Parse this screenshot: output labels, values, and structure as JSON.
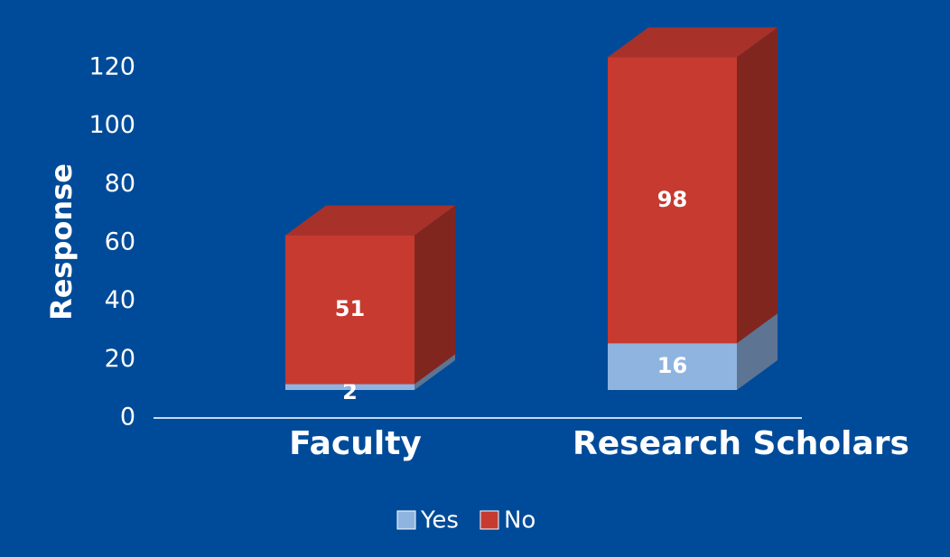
{
  "chart_data": {
    "type": "stacked_bar_3d",
    "categories": [
      "Faculty",
      "Research Scholars"
    ],
    "series": [
      {
        "name": "Yes",
        "color": "#8fb4e0",
        "values": [
          2,
          16
        ]
      },
      {
        "name": "No",
        "color": "#c63a30",
        "values": [
          51,
          98
        ]
      }
    ],
    "y_label": "Response",
    "ylim": [
      0,
      120
    ],
    "yticks": [
      0,
      20,
      40,
      60,
      80,
      100,
      120
    ],
    "legend": "bottom"
  }
}
